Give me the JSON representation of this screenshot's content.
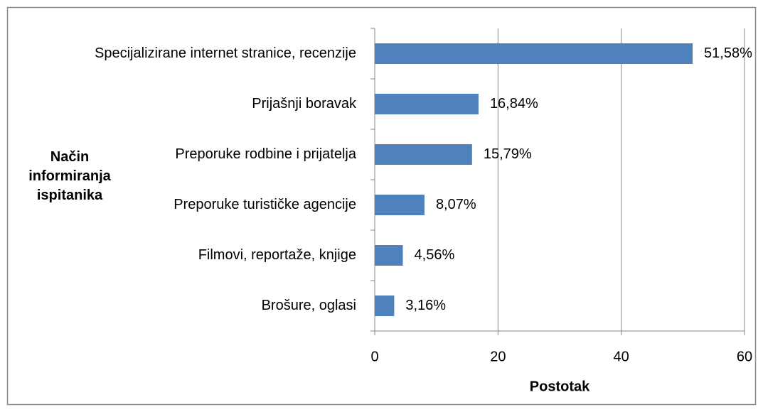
{
  "chart_data": {
    "type": "bar",
    "orientation": "horizontal",
    "categories": [
      "Specijalizirane internet stranice, recenzije",
      "Prijašnji boravak",
      "Preporuke rodbine i prijatelja",
      "Preporuke turističke agencije",
      "Filmovi, reportaže, knjige",
      "Brošure, oglasi"
    ],
    "values": [
      51.58,
      16.84,
      15.79,
      8.07,
      4.56,
      3.16
    ],
    "value_labels": [
      "51,58%",
      "16,84%",
      "15,79%",
      "8,07%",
      "4,56%",
      "3,16%"
    ],
    "color": "#4f81bd",
    "xlim": [
      0,
      60
    ],
    "xticks": [
      0,
      20,
      40,
      60
    ],
    "grid": true,
    "x_label": "Postotak",
    "y_label": "Način informiranja ispitanika"
  }
}
